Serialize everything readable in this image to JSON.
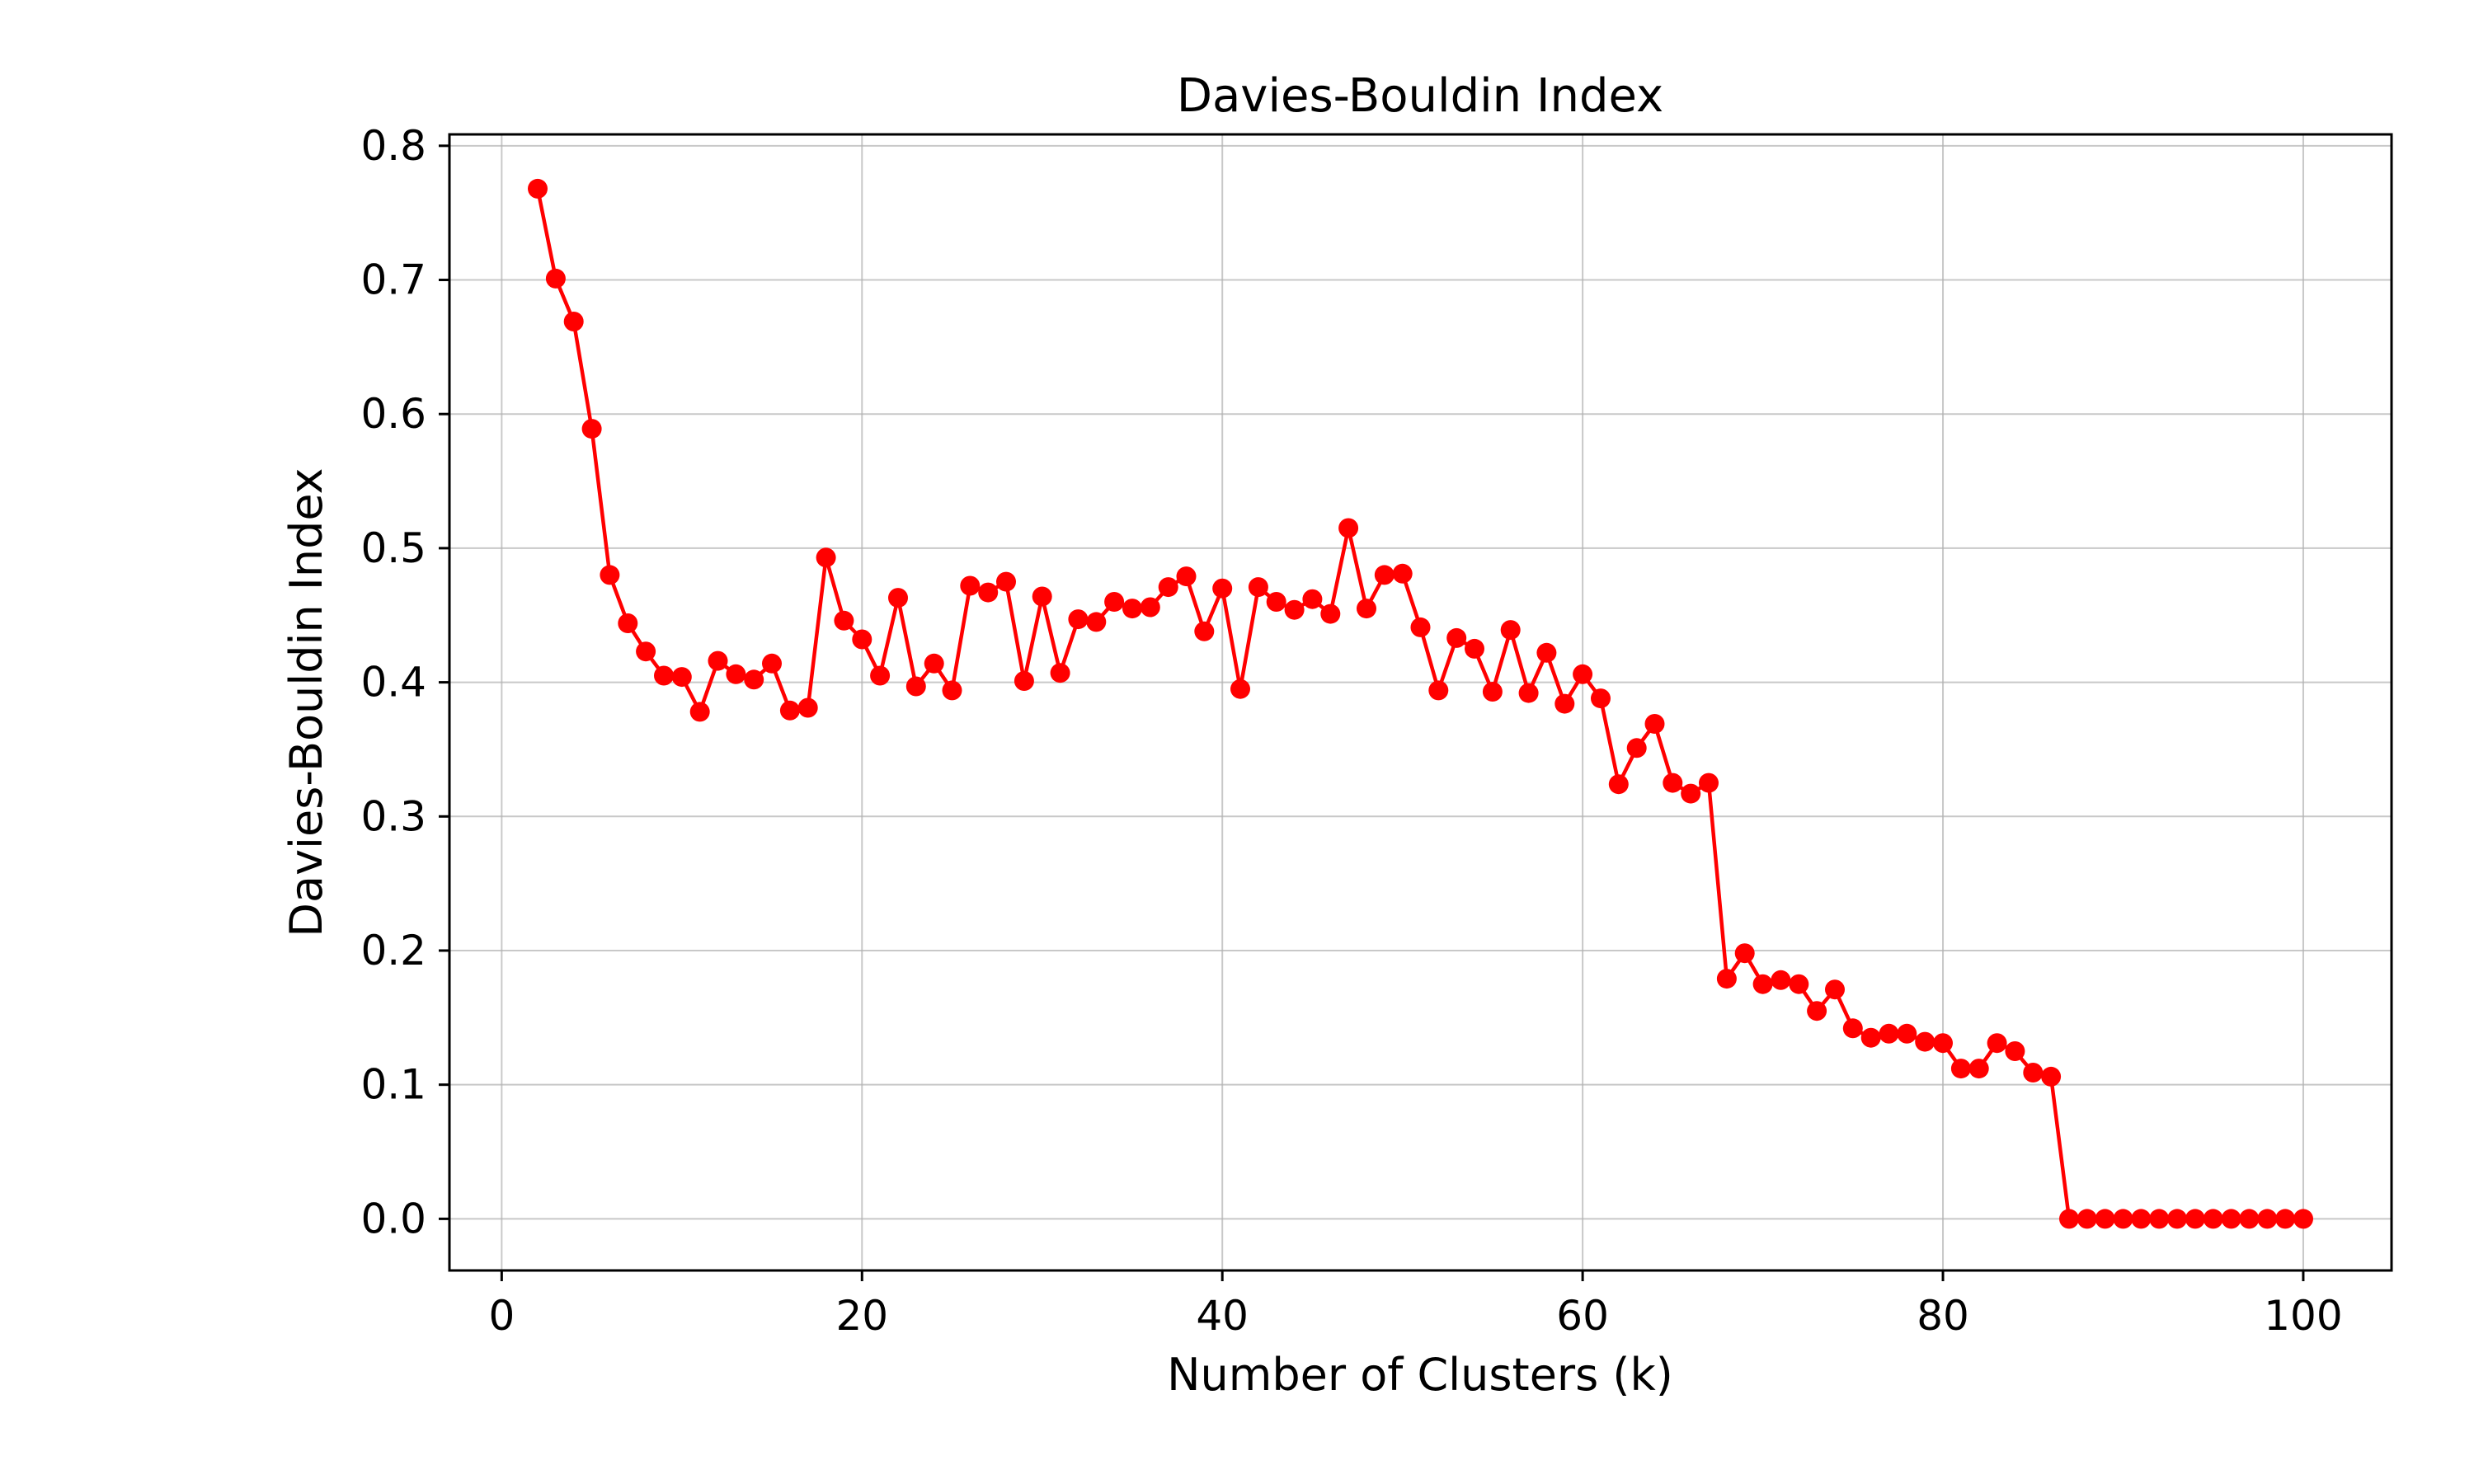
{
  "chart_data": {
    "type": "line",
    "title": "Davies-Bouldin Index",
    "xlabel": "Number of Clusters (k)",
    "ylabel": "Davies-Bouldin Index",
    "xlim": [
      -2.9,
      104.9
    ],
    "ylim": [
      -0.0385,
      0.8085
    ],
    "xticks": [
      0,
      20,
      40,
      60,
      80,
      100
    ],
    "yticks": [
      0.0,
      0.1,
      0.2,
      0.3,
      0.4,
      0.5,
      0.6,
      0.7,
      0.8
    ],
    "xtick_labels": [
      "0",
      "20",
      "40",
      "60",
      "80",
      "100"
    ],
    "ytick_labels": [
      "0.0",
      "0.1",
      "0.2",
      "0.3",
      "0.4",
      "0.5",
      "0.6",
      "0.7",
      "0.8"
    ],
    "grid": true,
    "marker": "circle",
    "color": "#ff0000",
    "series": [
      {
        "x": [
          2,
          3,
          4,
          5,
          6,
          7,
          8,
          9,
          10,
          11,
          12,
          13,
          14,
          15,
          16,
          17,
          18,
          19,
          20,
          21,
          22,
          23,
          24,
          25,
          26,
          27,
          28,
          29,
          30,
          31,
          32,
          33,
          34,
          35,
          36,
          37,
          38,
          39,
          40,
          41,
          42,
          43,
          44,
          45,
          46,
          47,
          48,
          49,
          50,
          51,
          52,
          53,
          54,
          55,
          56,
          57,
          58,
          59,
          60,
          61,
          62,
          63,
          64,
          65,
          66,
          67,
          68,
          69,
          70,
          71,
          72,
          73,
          74,
          75,
          76,
          77,
          78,
          79,
          80,
          81,
          82,
          83,
          84,
          85,
          86,
          87,
          88,
          89,
          90,
          91,
          92,
          93,
          94,
          95,
          96,
          97,
          98,
          99,
          100
        ],
        "values": [
          0.768,
          0.701,
          0.669,
          0.589,
          0.48,
          0.444,
          0.423,
          0.405,
          0.404,
          0.378,
          0.416,
          0.406,
          0.402,
          0.414,
          0.379,
          0.381,
          0.493,
          0.446,
          0.432,
          0.405,
          0.463,
          0.397,
          0.414,
          0.394,
          0.472,
          0.467,
          0.475,
          0.401,
          0.464,
          0.407,
          0.447,
          0.445,
          0.46,
          0.455,
          0.456,
          0.471,
          0.479,
          0.438,
          0.47,
          0.395,
          0.471,
          0.46,
          0.454,
          0.462,
          0.451,
          0.515,
          0.455,
          0.48,
          0.481,
          0.441,
          0.394,
          0.433,
          0.425,
          0.393,
          0.439,
          0.392,
          0.422,
          0.384,
          0.406,
          0.388,
          0.324,
          0.351,
          0.369,
          0.325,
          0.317,
          0.325,
          0.179,
          0.198,
          0.175,
          0.178,
          0.175,
          0.155,
          0.171,
          0.142,
          0.135,
          0.138,
          0.138,
          0.132,
          0.131,
          0.112,
          0.112,
          0.131,
          0.125,
          0.109,
          0.106,
          0.0,
          0.0,
          0.0,
          0.0,
          0.0,
          0.0,
          0.0,
          0.0,
          0.0,
          0.0,
          0.0,
          0.0,
          0.0,
          0.0
        ]
      }
    ]
  }
}
